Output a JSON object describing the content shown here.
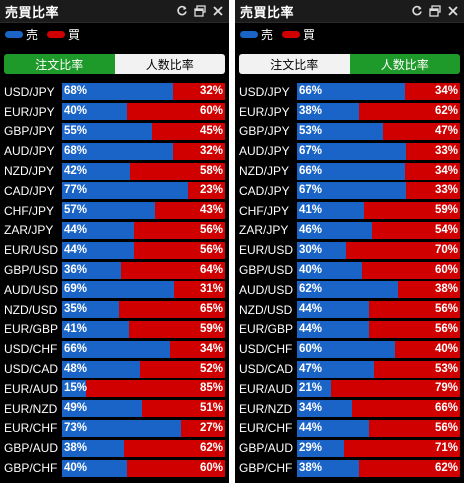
{
  "title": "売買比率",
  "legend": {
    "sell_label": "売",
    "buy_label": "買",
    "sell_color": "#1a64c8",
    "buy_color": "#d00000"
  },
  "tabs": {
    "order_ratio": "注文比率",
    "people_ratio": "人数比率"
  },
  "panels": [
    {
      "active_tab": "order",
      "rows": [
        {
          "pair": "USD/JPY",
          "sell": 68,
          "sell_label": "68%",
          "buy_label": "32%"
        },
        {
          "pair": "EUR/JPY",
          "sell": 40,
          "sell_label": "40%",
          "buy_label": "60%"
        },
        {
          "pair": "GBP/JPY",
          "sell": 55,
          "sell_label": "55%",
          "buy_label": "45%"
        },
        {
          "pair": "AUD/JPY",
          "sell": 68,
          "sell_label": "68%",
          "buy_label": "32%"
        },
        {
          "pair": "NZD/JPY",
          "sell": 42,
          "sell_label": "42%",
          "buy_label": "58%"
        },
        {
          "pair": "CAD/JPY",
          "sell": 77,
          "sell_label": "77%",
          "buy_label": "23%"
        },
        {
          "pair": "CHF/JPY",
          "sell": 57,
          "sell_label": "57%",
          "buy_label": "43%"
        },
        {
          "pair": "ZAR/JPY",
          "sell": 44,
          "sell_label": "44%",
          "buy_label": "56%"
        },
        {
          "pair": "EUR/USD",
          "sell": 44,
          "sell_label": "44%",
          "buy_label": "56%"
        },
        {
          "pair": "GBP/USD",
          "sell": 36,
          "sell_label": "36%",
          "buy_label": "64%"
        },
        {
          "pair": "AUD/USD",
          "sell": 69,
          "sell_label": "69%",
          "buy_label": "31%"
        },
        {
          "pair": "NZD/USD",
          "sell": 35,
          "sell_label": "35%",
          "buy_label": "65%"
        },
        {
          "pair": "EUR/GBP",
          "sell": 41,
          "sell_label": "41%",
          "buy_label": "59%"
        },
        {
          "pair": "USD/CHF",
          "sell": 66,
          "sell_label": "66%",
          "buy_label": "34%"
        },
        {
          "pair": "USD/CAD",
          "sell": 48,
          "sell_label": "48%",
          "buy_label": "52%"
        },
        {
          "pair": "EUR/AUD",
          "sell": 15,
          "sell_label": "15%",
          "buy_label": "85%"
        },
        {
          "pair": "EUR/NZD",
          "sell": 49,
          "sell_label": "49%",
          "buy_label": "51%"
        },
        {
          "pair": "EUR/CHF",
          "sell": 73,
          "sell_label": "73%",
          "buy_label": "27%"
        },
        {
          "pair": "GBP/AUD",
          "sell": 38,
          "sell_label": "38%",
          "buy_label": "62%"
        },
        {
          "pair": "GBP/CHF",
          "sell": 40,
          "sell_label": "40%",
          "buy_label": "60%"
        }
      ]
    },
    {
      "active_tab": "people",
      "rows": [
        {
          "pair": "USD/JPY",
          "sell": 66,
          "sell_label": "66%",
          "buy_label": "34%"
        },
        {
          "pair": "EUR/JPY",
          "sell": 38,
          "sell_label": "38%",
          "buy_label": "62%"
        },
        {
          "pair": "GBP/JPY",
          "sell": 53,
          "sell_label": "53%",
          "buy_label": "47%"
        },
        {
          "pair": "AUD/JPY",
          "sell": 67,
          "sell_label": "67%",
          "buy_label": "33%"
        },
        {
          "pair": "NZD/JPY",
          "sell": 66,
          "sell_label": "66%",
          "buy_label": "34%"
        },
        {
          "pair": "CAD/JPY",
          "sell": 67,
          "sell_label": "67%",
          "buy_label": "33%"
        },
        {
          "pair": "CHF/JPY",
          "sell": 41,
          "sell_label": "41%",
          "buy_label": "59%"
        },
        {
          "pair": "ZAR/JPY",
          "sell": 46,
          "sell_label": "46%",
          "buy_label": "54%"
        },
        {
          "pair": "EUR/USD",
          "sell": 30,
          "sell_label": "30%",
          "buy_label": "70%"
        },
        {
          "pair": "GBP/USD",
          "sell": 40,
          "sell_label": "40%",
          "buy_label": "60%"
        },
        {
          "pair": "AUD/USD",
          "sell": 62,
          "sell_label": "62%",
          "buy_label": "38%"
        },
        {
          "pair": "NZD/USD",
          "sell": 44,
          "sell_label": "44%",
          "buy_label": "56%"
        },
        {
          "pair": "EUR/GBP",
          "sell": 44,
          "sell_label": "44%",
          "buy_label": "56%"
        },
        {
          "pair": "USD/CHF",
          "sell": 60,
          "sell_label": "60%",
          "buy_label": "40%"
        },
        {
          "pair": "USD/CAD",
          "sell": 47,
          "sell_label": "47%",
          "buy_label": "53%"
        },
        {
          "pair": "EUR/AUD",
          "sell": 21,
          "sell_label": "21%",
          "buy_label": "79%"
        },
        {
          "pair": "EUR/NZD",
          "sell": 34,
          "sell_label": "34%",
          "buy_label": "66%"
        },
        {
          "pair": "EUR/CHF",
          "sell": 44,
          "sell_label": "44%",
          "buy_label": "56%"
        },
        {
          "pair": "GBP/AUD",
          "sell": 29,
          "sell_label": "29%",
          "buy_label": "71%"
        },
        {
          "pair": "GBP/CHF",
          "sell": 38,
          "sell_label": "38%",
          "buy_label": "62%"
        }
      ]
    }
  ]
}
